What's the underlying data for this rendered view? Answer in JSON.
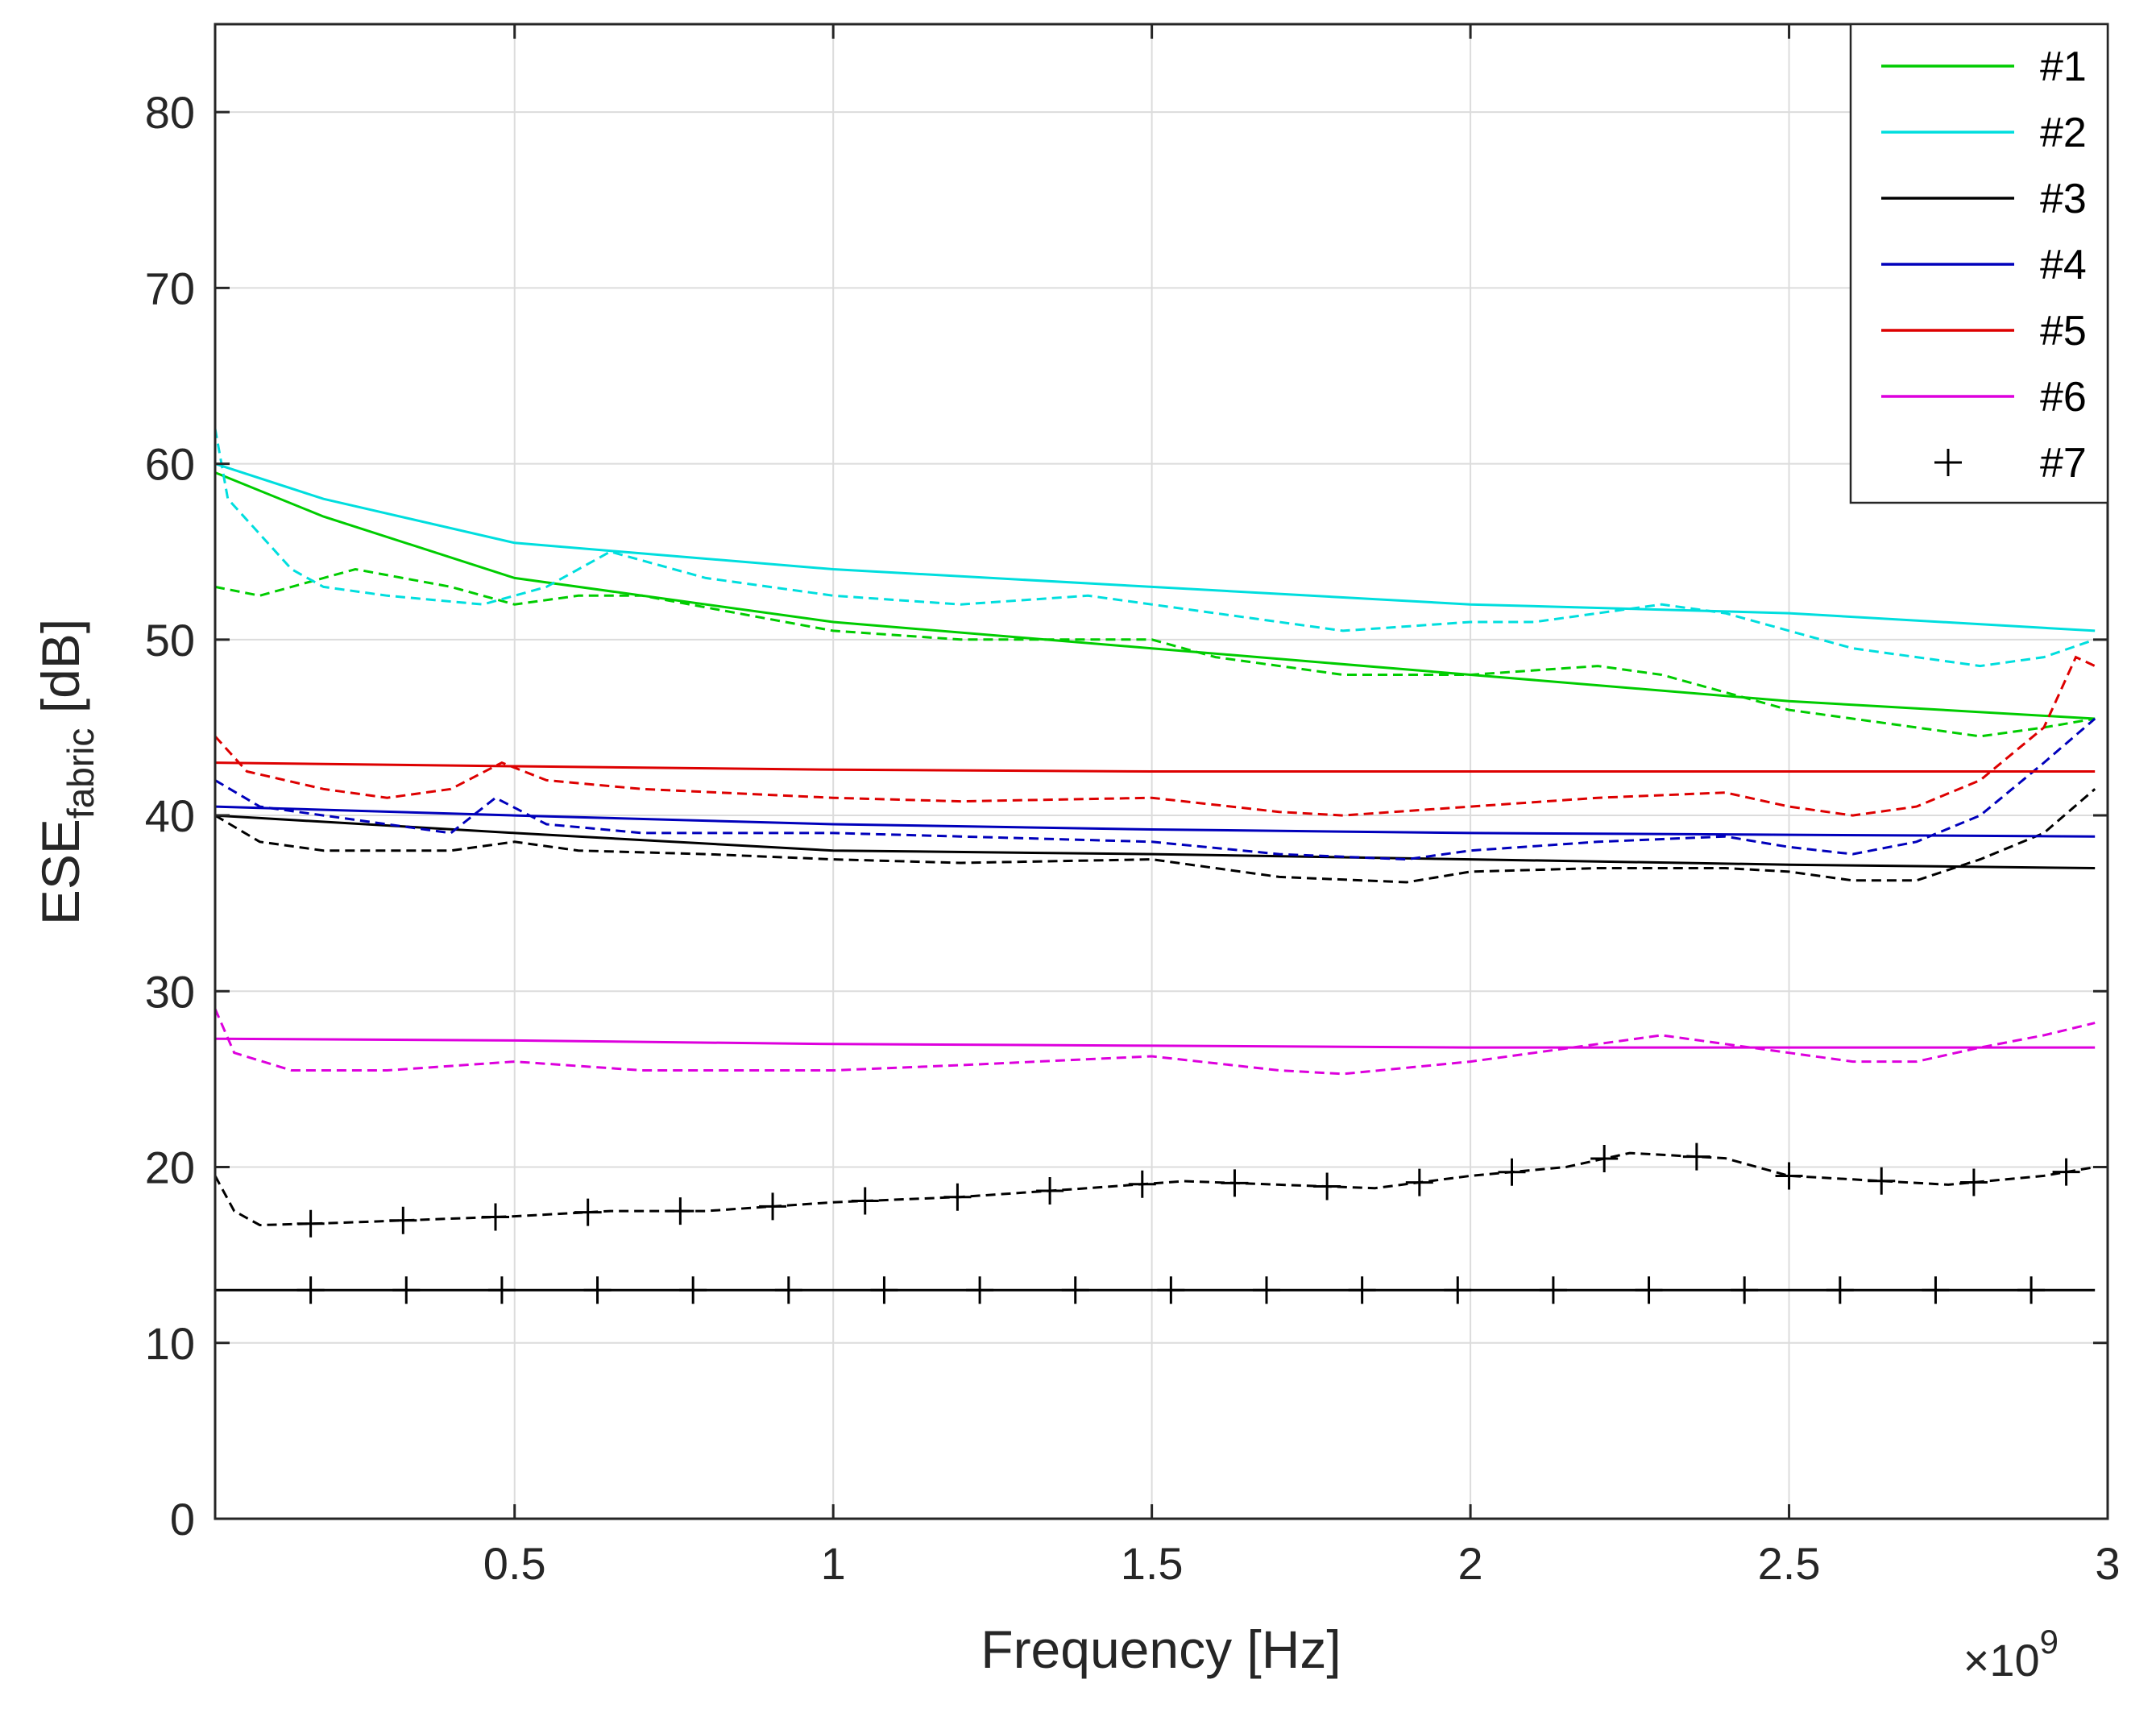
{
  "chart_data": {
    "type": "line",
    "title": "",
    "xlabel": "Frequency [Hz]",
    "ylabel_main": "ESE",
    "ylabel_sub": "fabric",
    "ylabel_unit": "[dB]",
    "x_exponent_times": "×10",
    "x_exponent_power": "9",
    "xlim": [
      0.03,
      3.0
    ],
    "ylim": [
      0,
      85
    ],
    "xticks": [
      0.5,
      1,
      1.5,
      2,
      2.5,
      3
    ],
    "xtick_labels": [
      "0.5",
      "1",
      "1.5",
      "2",
      "2.5",
      "3"
    ],
    "yticks": [
      0,
      10,
      20,
      30,
      40,
      50,
      60,
      70,
      80
    ],
    "ytick_labels": [
      "0",
      "10",
      "20",
      "30",
      "40",
      "50",
      "60",
      "70",
      "80"
    ],
    "grid": true,
    "legend_position": "top-right",
    "series": [
      {
        "name": "#1",
        "color": "#00cc00",
        "marker": "none",
        "model": {
          "x": [
            0.03,
            0.2,
            0.5,
            1.0,
            1.5,
            2.0,
            2.5,
            2.98
          ],
          "y": [
            59.5,
            57.0,
            53.5,
            51.0,
            49.5,
            48.0,
            46.5,
            45.5
          ]
        },
        "measured": {
          "x": [
            0.03,
            0.1,
            0.25,
            0.4,
            0.5,
            0.6,
            0.7,
            0.85,
            1.0,
            1.2,
            1.4,
            1.5,
            1.6,
            1.8,
            2.0,
            2.2,
            2.3,
            2.4,
            2.5,
            2.6,
            2.7,
            2.8,
            2.9,
            2.98
          ],
          "y": [
            53.0,
            52.5,
            54.0,
            53.0,
            52.0,
            52.5,
            52.5,
            51.5,
            50.5,
            50.0,
            50.0,
            50.0,
            49.0,
            48.0,
            48.0,
            48.5,
            48.0,
            47.0,
            46.0,
            45.5,
            45.0,
            44.5,
            45.0,
            45.5
          ]
        }
      },
      {
        "name": "#2",
        "color": "#00dede",
        "marker": "none",
        "model": {
          "x": [
            0.03,
            0.2,
            0.5,
            1.0,
            1.5,
            2.0,
            2.5,
            2.98
          ],
          "y": [
            60.0,
            58.0,
            55.5,
            54.0,
            53.0,
            52.0,
            51.5,
            50.5
          ]
        },
        "measured": {
          "x": [
            0.03,
            0.05,
            0.1,
            0.15,
            0.2,
            0.3,
            0.45,
            0.55,
            0.65,
            0.7,
            0.8,
            1.0,
            1.2,
            1.4,
            1.5,
            1.6,
            1.8,
            2.0,
            2.1,
            2.3,
            2.4,
            2.5,
            2.6,
            2.7,
            2.8,
            2.9,
            2.98
          ],
          "y": [
            62.0,
            58.0,
            56.0,
            54.0,
            53.0,
            52.5,
            52.0,
            53.0,
            55.0,
            54.5,
            53.5,
            52.5,
            52.0,
            52.5,
            52.0,
            51.5,
            50.5,
            51.0,
            51.0,
            52.0,
            51.5,
            50.5,
            49.5,
            49.0,
            48.5,
            49.0,
            50.0
          ]
        }
      },
      {
        "name": "#3",
        "color": "#000000",
        "marker": "none",
        "model": {
          "x": [
            0.03,
            0.5,
            1.0,
            1.5,
            2.0,
            2.5,
            2.98
          ],
          "y": [
            40.0,
            39.0,
            38.0,
            37.8,
            37.5,
            37.2,
            37.0
          ]
        },
        "measured": {
          "x": [
            0.03,
            0.1,
            0.2,
            0.4,
            0.5,
            0.6,
            0.8,
            1.0,
            1.2,
            1.5,
            1.7,
            1.9,
            2.0,
            2.2,
            2.4,
            2.5,
            2.6,
            2.7,
            2.8,
            2.9,
            2.98
          ],
          "y": [
            40.0,
            38.5,
            38.0,
            38.0,
            38.5,
            38.0,
            37.8,
            37.5,
            37.3,
            37.5,
            36.5,
            36.2,
            36.8,
            37.0,
            37.0,
            36.8,
            36.3,
            36.3,
            37.5,
            39.0,
            41.5
          ]
        }
      },
      {
        "name": "#4",
        "color": "#0000bb",
        "marker": "none",
        "model": {
          "x": [
            0.03,
            0.5,
            1.0,
            1.5,
            2.0,
            2.5,
            2.98
          ],
          "y": [
            40.5,
            40.0,
            39.5,
            39.2,
            39.0,
            38.9,
            38.8
          ]
        },
        "measured": {
          "x": [
            0.03,
            0.1,
            0.2,
            0.3,
            0.4,
            0.47,
            0.55,
            0.7,
            1.0,
            1.2,
            1.5,
            1.7,
            1.9,
            2.0,
            2.2,
            2.4,
            2.5,
            2.6,
            2.7,
            2.8,
            2.9,
            2.98
          ],
          "y": [
            42.0,
            40.5,
            40.0,
            39.5,
            39.0,
            41.0,
            39.5,
            39.0,
            39.0,
            38.8,
            38.5,
            37.8,
            37.5,
            38.0,
            38.5,
            38.8,
            38.2,
            37.8,
            38.5,
            40.0,
            43.0,
            45.5
          ]
        }
      },
      {
        "name": "#5",
        "color": "#dd0000",
        "marker": "none",
        "model": {
          "x": [
            0.03,
            0.5,
            1.0,
            1.5,
            2.0,
            2.5,
            2.98
          ],
          "y": [
            43.0,
            42.8,
            42.6,
            42.5,
            42.5,
            42.5,
            42.5
          ]
        },
        "measured": {
          "x": [
            0.03,
            0.08,
            0.2,
            0.3,
            0.4,
            0.48,
            0.55,
            0.7,
            1.0,
            1.2,
            1.5,
            1.7,
            1.8,
            2.0,
            2.2,
            2.4,
            2.5,
            2.6,
            2.7,
            2.8,
            2.9,
            2.95,
            2.98
          ],
          "y": [
            44.5,
            42.5,
            41.5,
            41.0,
            41.5,
            43.0,
            42.0,
            41.5,
            41.0,
            40.8,
            41.0,
            40.2,
            40.0,
            40.5,
            41.0,
            41.3,
            40.5,
            40.0,
            40.5,
            42.0,
            45.0,
            49.0,
            48.5
          ]
        }
      },
      {
        "name": "#6",
        "color": "#dd00dd",
        "marker": "none",
        "model": {
          "x": [
            0.03,
            0.5,
            1.0,
            1.5,
            2.0,
            2.5,
            2.98
          ],
          "y": [
            27.3,
            27.2,
            27.0,
            26.9,
            26.8,
            26.8,
            26.8
          ]
        },
        "measured": {
          "x": [
            0.03,
            0.06,
            0.15,
            0.3,
            0.5,
            0.7,
            1.0,
            1.2,
            1.5,
            1.7,
            1.8,
            2.0,
            2.2,
            2.3,
            2.4,
            2.5,
            2.6,
            2.7,
            2.8,
            2.9,
            2.98
          ],
          "y": [
            29.0,
            26.5,
            25.5,
            25.5,
            26.0,
            25.5,
            25.5,
            25.8,
            26.3,
            25.5,
            25.3,
            26.0,
            27.0,
            27.5,
            27.0,
            26.5,
            26.0,
            26.0,
            26.8,
            27.5,
            28.2
          ]
        }
      },
      {
        "name": "#7",
        "color": "#000000",
        "marker": "plus",
        "model": {
          "x": [
            0.03,
            0.5,
            1.0,
            1.5,
            2.0,
            2.5,
            2.98
          ],
          "y": [
            13.0,
            13.0,
            13.0,
            13.0,
            13.0,
            13.0,
            13.0
          ]
        },
        "measured": {
          "x": [
            0.03,
            0.06,
            0.1,
            0.2,
            0.35,
            0.5,
            0.65,
            0.8,
            1.0,
            1.2,
            1.4,
            1.55,
            1.7,
            1.85,
            2.0,
            2.15,
            2.25,
            2.4,
            2.5,
            2.6,
            2.75,
            2.9,
            2.98
          ],
          "y": [
            19.5,
            17.5,
            16.7,
            16.8,
            17.0,
            17.2,
            17.5,
            17.5,
            18.0,
            18.3,
            18.8,
            19.2,
            19.0,
            18.8,
            19.5,
            20.0,
            20.8,
            20.5,
            19.5,
            19.3,
            19.0,
            19.5,
            20.0
          ]
        }
      }
    ]
  }
}
